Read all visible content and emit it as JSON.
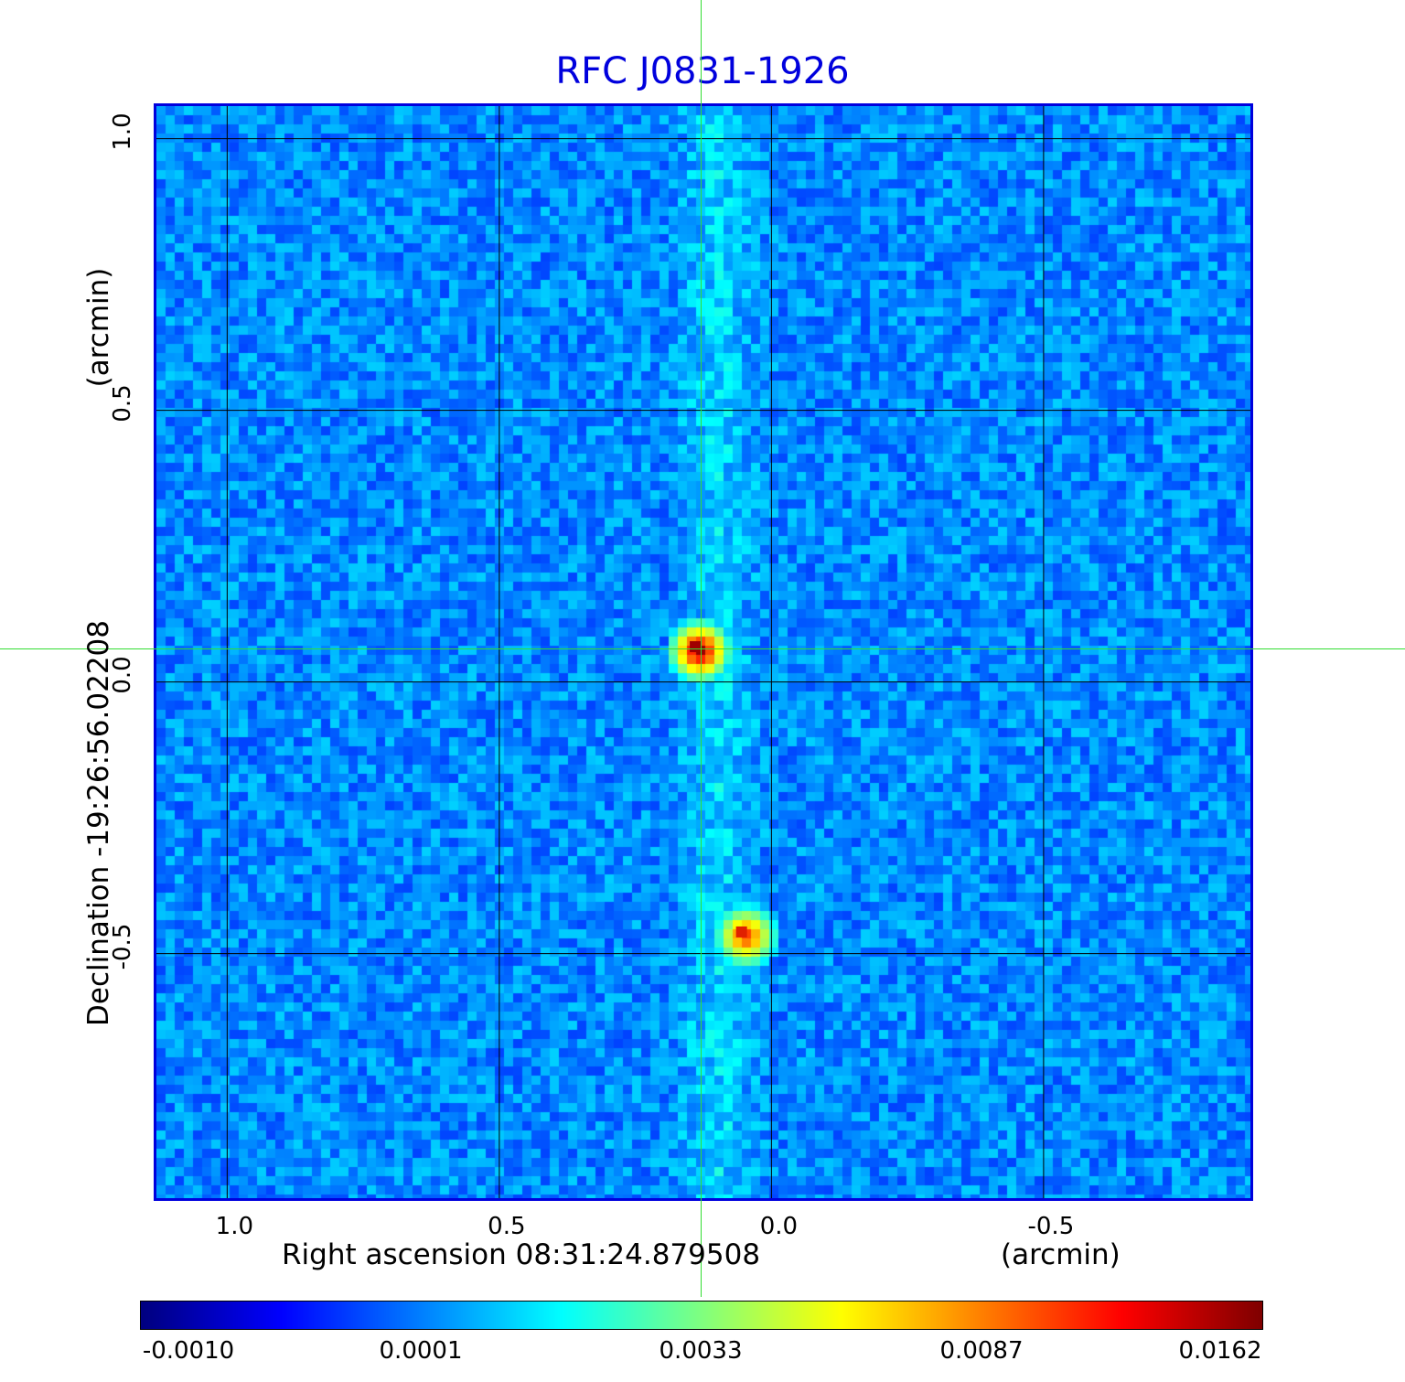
{
  "chart_data": {
    "type": "heatmap",
    "title": "RFC J0831-1926",
    "xlabel": "Right ascension  08:31:24.879508",
    "xunit": "(arcmin)",
    "ylabel": "Declination  -19:26:56.02208",
    "yunit": "(arcmin)",
    "xlim": [
      1.13,
      -0.88
    ],
    "ylim": [
      -0.95,
      1.06
    ],
    "xticks": [
      {
        "value": 1.0,
        "label": "1.0"
      },
      {
        "value": 0.5,
        "label": "0.5"
      },
      {
        "value": 0.0,
        "label": "0.0"
      },
      {
        "value": -0.5,
        "label": "-0.5"
      }
    ],
    "yticks": [
      {
        "value": 1.0,
        "label": "1.0"
      },
      {
        "value": 0.5,
        "label": "0.5"
      },
      {
        "value": 0.0,
        "label": "0.0"
      },
      {
        "value": -0.5,
        "label": "-0.5"
      }
    ],
    "grid": true,
    "crosshair": {
      "x": 0.13,
      "y": 0.06
    },
    "sources": [
      {
        "x": 0.14,
        "y": 0.065,
        "peak": 0.0162
      },
      {
        "x": 0.055,
        "y": -0.46,
        "peak": 0.0115
      }
    ],
    "colorbar": {
      "colormap": "jet",
      "ticks": [
        "-0.0010",
        "0.0001",
        "0.0033",
        "0.0087",
        "0.0162"
      ]
    }
  }
}
